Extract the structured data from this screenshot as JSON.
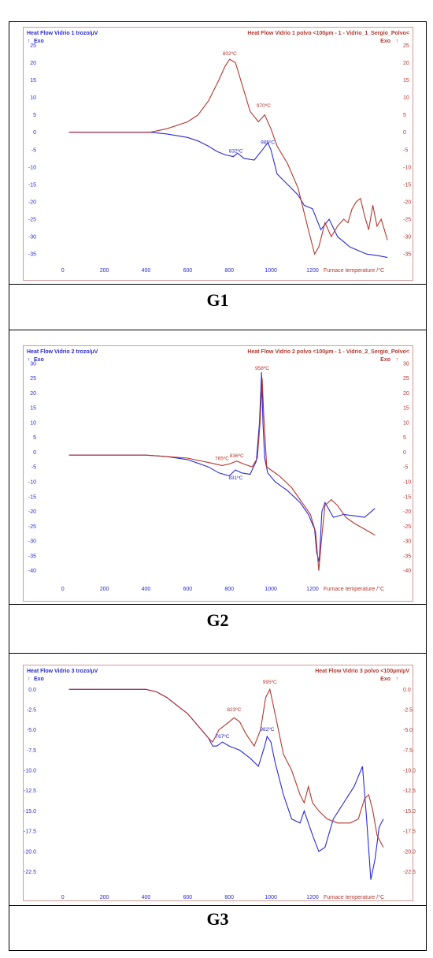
{
  "colors": {
    "blue": "#2b2bd6",
    "red": "#b5372e",
    "frame": "#d39a9a"
  },
  "chart_data": [
    {
      "type": "line",
      "caption": "G1",
      "left_axis_label": "Heat Flow Vidrio 1 trozo/µV",
      "right_axis_label": "Heat Flow Vidrio 1 polvo <100µm - 1 - Vidrio_1_Sergio_Polvo<",
      "exo_label": "Exo",
      "xlabel": "Furnace temperature /°C",
      "xlim": [
        -120,
        1620
      ],
      "ylim": [
        -37,
        26
      ],
      "xticks": [
        0,
        200,
        400,
        600,
        800,
        1000,
        1200
      ],
      "yticks": [
        25,
        20,
        15,
        10,
        5,
        0,
        -5,
        -10,
        -15,
        -20,
        -25,
        -30,
        -35
      ],
      "series": [
        {
          "color": "blue",
          "x": [
            30,
            200,
            380,
            420,
            500,
            600,
            650,
            700,
            740,
            780,
            820,
            840,
            870,
            920,
            960,
            985,
            1000,
            1030,
            1080,
            1130,
            1160,
            1200,
            1240,
            1280,
            1320,
            1380,
            1420,
            1460,
            1520,
            1560
          ],
          "y": [
            0,
            0,
            0,
            0,
            -0.5,
            -1.5,
            -2.5,
            -4,
            -5.5,
            -6.5,
            -7,
            -6,
            -7.5,
            -8,
            -5,
            -3,
            -5,
            -12,
            -15,
            -18,
            -21,
            -22,
            -28,
            -25,
            -30,
            -33,
            -34,
            -35,
            -35.5,
            -36
          ]
        },
        {
          "color": "red",
          "x": [
            30,
            200,
            380,
            420,
            500,
            600,
            650,
            700,
            750,
            780,
            802,
            830,
            860,
            900,
            940,
            970,
            1000,
            1030,
            1080,
            1130,
            1180,
            1210,
            1230,
            1260,
            1290,
            1320,
            1350,
            1370,
            1390,
            1410,
            1430,
            1450,
            1470,
            1490,
            1510,
            1530,
            1550,
            1560
          ],
          "y": [
            0,
            0,
            0,
            0,
            1,
            3,
            5,
            9,
            15,
            19,
            21,
            20,
            14,
            6,
            3,
            5,
            1,
            -4,
            -9,
            -16,
            -28,
            -35,
            -33,
            -26,
            -30,
            -27,
            -25,
            -26,
            -22,
            -20,
            -19,
            -24,
            -28,
            -21,
            -27,
            -25,
            -29,
            -31
          ]
        }
      ],
      "annotations": [
        {
          "text": "802ºC",
          "x": 802,
          "y": 21.5,
          "color": "red"
        },
        {
          "text": "970ºC",
          "x": 965,
          "y": 6.5,
          "color": "red"
        },
        {
          "text": "832ºC",
          "x": 832,
          "y": -6.5,
          "color": "blue"
        },
        {
          "text": "985ºC",
          "x": 985,
          "y": -4,
          "color": "blue"
        }
      ]
    },
    {
      "type": "line",
      "caption": "G2",
      "left_axis_label": "Heat Flow Vidrio 2 trozo/µV",
      "right_axis_label": "Heat Flow Vidrio 2 polvo <100µm - 1 - Vidrio_2_Sergio_Polvo<",
      "exo_label": "Exo",
      "xlabel": "Furnace temperature /°C",
      "xlim": [
        -120,
        1620
      ],
      "ylim": [
        -43,
        31
      ],
      "xticks": [
        0,
        200,
        400,
        600,
        800,
        1000,
        1200
      ],
      "yticks": [
        30,
        25,
        20,
        15,
        10,
        5,
        0,
        -5,
        -10,
        -15,
        -20,
        -25,
        -30,
        -35,
        -40
      ],
      "series": [
        {
          "color": "blue",
          "x": [
            30,
            200,
            400,
            500,
            600,
            700,
            750,
            800,
            830,
            860,
            900,
            930,
            945,
            955,
            962,
            970,
            985,
            1020,
            1080,
            1140,
            1180,
            1210,
            1220,
            1232,
            1245,
            1260,
            1300,
            1350,
            1400,
            1450,
            1500
          ],
          "y": [
            -1,
            -1,
            -1,
            -1.5,
            -2.5,
            -5,
            -7,
            -8,
            -6,
            -7,
            -7.5,
            -3,
            10,
            27,
            10,
            -2,
            -7,
            -10,
            -13,
            -17,
            -21,
            -26,
            -34,
            -37,
            -20,
            -17,
            -22,
            -21,
            -21.5,
            -22,
            -19
          ]
        },
        {
          "color": "red",
          "x": [
            30,
            200,
            400,
            500,
            600,
            700,
            765,
            800,
            836,
            870,
            910,
            935,
            948,
            958,
            966,
            980,
            1000,
            1040,
            1100,
            1150,
            1190,
            1215,
            1230,
            1245,
            1260,
            1290,
            1320,
            1360,
            1400,
            1450,
            1500
          ],
          "y": [
            -1,
            -1,
            -1,
            -1.5,
            -2,
            -3.5,
            -4.5,
            -4,
            -3,
            -4,
            -5,
            -2,
            10,
            25,
            12,
            -5,
            -6,
            -8,
            -12,
            -17,
            -21,
            -27,
            -40,
            -28,
            -18,
            -16,
            -18,
            -22,
            -24,
            -26,
            -28
          ]
        }
      ],
      "annotations": [
        {
          "text": "765ºC",
          "x": 765,
          "y": -3.5,
          "color": "red"
        },
        {
          "text": "836ºC",
          "x": 836,
          "y": -2.5,
          "color": "red"
        },
        {
          "text": "958ºC",
          "x": 958,
          "y": 27,
          "color": "red"
        },
        {
          "text": "831ºC",
          "x": 831,
          "y": -10,
          "color": "blue"
        }
      ]
    },
    {
      "type": "line",
      "caption": "G3",
      "left_axis_label": "Heat Flow Vidrio 3 trozo/µV",
      "right_axis_label": "Heat Flow Vidrio 3  polvo <100µm/µV",
      "exo_label": "Exo",
      "xlabel": "Furnace temperature /°C",
      "xlim": [
        -120,
        1620
      ],
      "ylim": [
        -24.5,
        1.2
      ],
      "xticks": [
        0,
        200,
        400,
        600,
        800,
        1000,
        1200
      ],
      "yticks": [
        0.0,
        -2.5,
        -5.0,
        -7.5,
        -10.0,
        -12.5,
        -15.0,
        -17.5,
        -20.0,
        -22.5
      ],
      "series": [
        {
          "color": "blue",
          "x": [
            30,
            200,
            400,
            450,
            500,
            550,
            600,
            650,
            700,
            720,
            740,
            767,
            800,
            850,
            900,
            940,
            970,
            982,
            1000,
            1020,
            1060,
            1100,
            1140,
            1160,
            1200,
            1230,
            1260,
            1300,
            1350,
            1400,
            1440,
            1460,
            1480,
            1500,
            1520,
            1540
          ],
          "y": [
            0,
            0,
            0,
            -0.3,
            -1,
            -2,
            -3,
            -4.5,
            -6,
            -7,
            -7,
            -6.5,
            -7,
            -7.5,
            -8.5,
            -9.5,
            -7,
            -5.8,
            -6.5,
            -9,
            -13,
            -16,
            -16.5,
            -15,
            -18,
            -20,
            -19.5,
            -16,
            -14,
            -12,
            -9.5,
            -16,
            -23.5,
            -21,
            -17,
            -16
          ]
        },
        {
          "color": "red",
          "x": [
            30,
            200,
            400,
            450,
            500,
            550,
            600,
            650,
            700,
            720,
            750,
            800,
            823,
            850,
            880,
            920,
            950,
            975,
            995,
            1020,
            1060,
            1100,
            1140,
            1160,
            1180,
            1200,
            1230,
            1270,
            1320,
            1380,
            1420,
            1450,
            1470,
            1490,
            1510,
            1540
          ],
          "y": [
            0,
            0,
            0,
            -0.3,
            -1,
            -2,
            -3,
            -4.5,
            -6,
            -6.5,
            -5,
            -4,
            -3.5,
            -4,
            -5.5,
            -7,
            -5,
            -1,
            0,
            -3,
            -8,
            -10,
            -13,
            -14,
            -12,
            -14,
            -15,
            -16,
            -16.5,
            -16.5,
            -16,
            -13.5,
            -13,
            -15,
            -18,
            -19.5
          ]
        }
      ],
      "annotations": [
        {
          "text": "823ºC",
          "x": 823,
          "y": -3,
          "color": "red"
        },
        {
          "text": "995ºC",
          "x": 995,
          "y": 0.4,
          "color": "red"
        },
        {
          "text": "767ºC",
          "x": 767,
          "y": -6.3,
          "color": "blue"
        },
        {
          "text": "982ºC",
          "x": 982,
          "y": -5.4,
          "color": "blue"
        }
      ]
    }
  ]
}
